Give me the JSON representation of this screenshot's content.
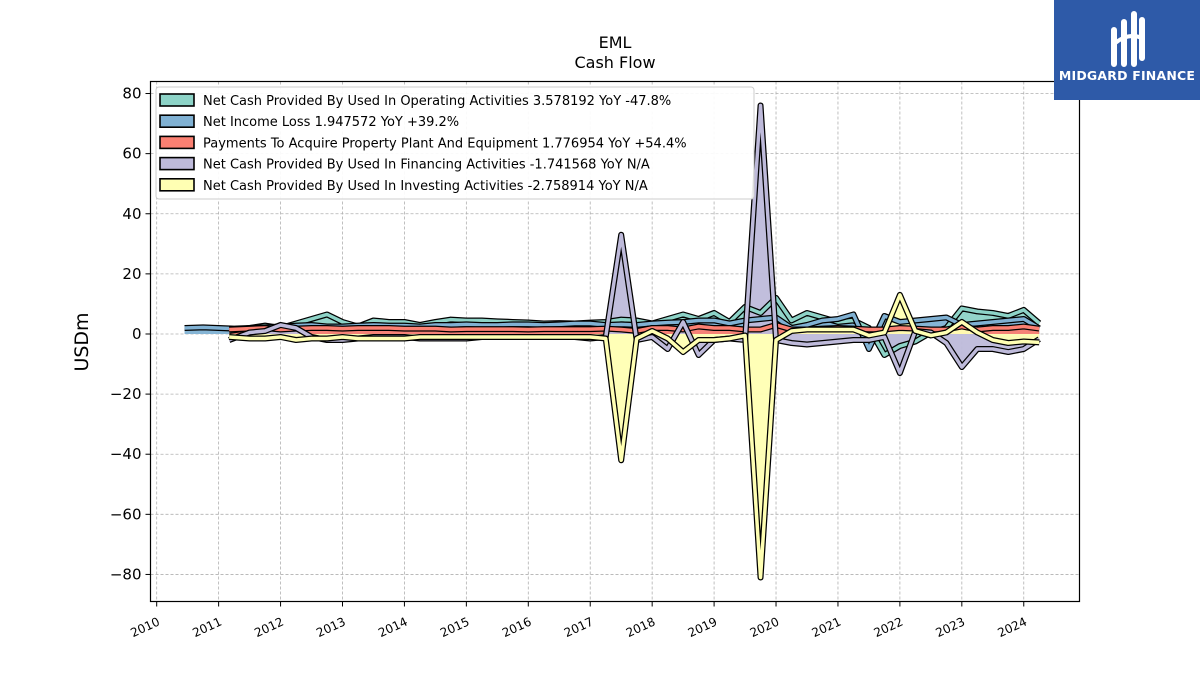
{
  "logo": {
    "text": "MIDGARD FINANCE",
    "icon": "midgard-logo-icon",
    "color": "#2e5aa8"
  },
  "chart_data": {
    "type": "area",
    "title": "EML",
    "subtitle": "Cash Flow",
    "xlabel": "",
    "ylabel": "USDm",
    "xlim": [
      2009.9,
      2024.9
    ],
    "ylim": [
      -89,
      84
    ],
    "x_ticks": [
      "2010",
      "2011",
      "2012",
      "2013",
      "2014",
      "2015",
      "2016",
      "2017",
      "2018",
      "2019",
      "2020",
      "2021",
      "2022",
      "2023",
      "2024"
    ],
    "y_ticks": [
      80,
      60,
      40,
      20,
      0,
      -20,
      -40,
      -60,
      -80
    ],
    "grid": true,
    "legend_position": "top-left",
    "series": [
      {
        "name": "Net Cash Provided By Used In Operating Activities  3.578192 YoY -47.8%",
        "color": "#8dd3c7",
        "x": [
          2011.17,
          2011.5,
          2011.75,
          2012.0,
          2012.25,
          2012.5,
          2012.75,
          2013.0,
          2013.25,
          2013.5,
          2013.75,
          2014.0,
          2014.25,
          2014.5,
          2014.75,
          2015.0,
          2015.25,
          2015.5,
          2015.75,
          2016.0,
          2016.25,
          2016.5,
          2016.75,
          2017.0,
          2017.25,
          2017.5,
          2017.75,
          2018.0,
          2018.25,
          2018.5,
          2018.75,
          2019.0,
          2019.25,
          2019.5,
          2019.75,
          2020.0,
          2020.25,
          2020.5,
          2020.75,
          2021.0,
          2021.25,
          2021.5,
          2021.75,
          2022.0,
          2022.25,
          2022.5,
          2022.75,
          2023.0,
          2023.25,
          2023.5,
          2023.75,
          2024.0,
          2024.25
        ],
        "values": [
          1.0,
          2.0,
          2.8,
          2.0,
          3.5,
          5.0,
          6.5,
          4.0,
          2.5,
          4.5,
          4.0,
          4.0,
          3.0,
          4.0,
          4.8,
          4.5,
          4.5,
          4.2,
          4.0,
          3.8,
          3.5,
          3.6,
          3.5,
          3.8,
          4.0,
          4.8,
          4.5,
          3.5,
          5.0,
          6.5,
          5.0,
          7.0,
          4.0,
          9.0,
          7.0,
          12.0,
          4.5,
          7.0,
          5.5,
          4.0,
          4.5,
          2.0,
          -7.0,
          -4.0,
          -2.5,
          0.5,
          2.0,
          8.5,
          7.5,
          7.0,
          6.0,
          8.0,
          3.6
        ]
      },
      {
        "name": "Net Income Loss  1.947572 YoY +39.2%",
        "color": "#80b1d3",
        "x": [
          2010.45,
          2010.75,
          2011.0,
          2011.25,
          2011.5,
          2011.75,
          2012.0,
          2012.25,
          2012.5,
          2012.75,
          2013.0,
          2013.25,
          2013.5,
          2013.75,
          2014.0,
          2014.25,
          2014.5,
          2014.75,
          2015.0,
          2015.25,
          2015.5,
          2015.75,
          2016.0,
          2016.25,
          2016.5,
          2016.75,
          2017.0,
          2017.25,
          2017.5,
          2017.75,
          2018.0,
          2018.25,
          2018.5,
          2018.75,
          2019.0,
          2019.25,
          2019.5,
          2019.75,
          2020.0,
          2020.25,
          2020.5,
          2020.75,
          2021.0,
          2021.25,
          2021.5,
          2021.75,
          2022.0,
          2022.25,
          2022.5,
          2022.75,
          2023.0,
          2023.25,
          2023.5,
          2023.75,
          2024.0,
          2024.25
        ],
        "values": [
          2.0,
          2.2,
          2.0,
          1.8,
          2.0,
          2.2,
          2.5,
          2.8,
          3.0,
          2.5,
          2.5,
          2.8,
          3.0,
          2.8,
          2.8,
          2.5,
          3.0,
          3.0,
          3.2,
          3.0,
          3.0,
          3.2,
          3.2,
          3.0,
          3.2,
          3.5,
          3.5,
          3.0,
          3.2,
          3.0,
          3.5,
          3.8,
          4.0,
          4.5,
          4.5,
          3.5,
          4.5,
          5.0,
          5.5,
          2.0,
          3.0,
          4.5,
          5.0,
          6.5,
          -5.0,
          6.0,
          4.0,
          4.5,
          5.0,
          5.5,
          3.0,
          3.5,
          4.0,
          4.5,
          5.0,
          1.9
        ]
      },
      {
        "name": "Payments To Acquire Property Plant And Equipment  1.776954 YoY +54.4%",
        "color": "#fb8072",
        "x": [
          2011.17,
          2011.5,
          2011.75,
          2012.0,
          2012.25,
          2012.5,
          2012.75,
          2013.0,
          2013.25,
          2013.5,
          2013.75,
          2014.0,
          2014.25,
          2014.5,
          2014.75,
          2015.0,
          2015.25,
          2015.5,
          2015.75,
          2016.0,
          2016.25,
          2016.5,
          2016.75,
          2017.0,
          2017.25,
          2017.5,
          2017.75,
          2018.0,
          2018.25,
          2018.5,
          2018.75,
          2019.0,
          2019.25,
          2019.5,
          2019.75,
          2020.0,
          2020.25,
          2020.5,
          2020.75,
          2021.0,
          2021.25,
          2021.5,
          2021.75,
          2022.0,
          2022.25,
          2022.5,
          2022.75,
          2023.0,
          2023.25,
          2023.5,
          2023.75,
          2024.0,
          2024.25
        ],
        "values": [
          1.5,
          1.8,
          2.0,
          1.5,
          1.8,
          2.0,
          2.0,
          1.8,
          2.0,
          2.0,
          2.0,
          1.8,
          1.8,
          1.8,
          1.5,
          1.6,
          1.6,
          1.6,
          1.6,
          1.5,
          1.6,
          1.6,
          1.6,
          1.6,
          1.8,
          1.5,
          1.0,
          2.0,
          2.0,
          1.5,
          2.5,
          2.0,
          2.0,
          1.5,
          1.5,
          3.0,
          1.5,
          1.5,
          1.8,
          2.0,
          1.8,
          1.5,
          1.5,
          2.0,
          1.8,
          1.5,
          1.5,
          2.5,
          1.5,
          2.0,
          2.0,
          2.5,
          1.8
        ]
      },
      {
        "name": "Net Cash Provided By Used In Financing Activities  -1.741568 YoY N/A",
        "color": "#bebada",
        "x": [
          2011.17,
          2011.5,
          2011.75,
          2012.0,
          2012.25,
          2012.5,
          2012.75,
          2013.0,
          2013.25,
          2013.5,
          2013.75,
          2014.0,
          2014.25,
          2014.5,
          2014.75,
          2015.0,
          2015.25,
          2015.5,
          2015.75,
          2016.0,
          2016.25,
          2016.5,
          2016.75,
          2017.0,
          2017.25,
          2017.5,
          2017.75,
          2018.0,
          2018.25,
          2018.5,
          2018.75,
          2019.0,
          2019.25,
          2019.5,
          2019.75,
          2020.0,
          2020.25,
          2020.5,
          2020.75,
          2021.0,
          2021.25,
          2021.5,
          2021.75,
          2022.0,
          2022.25,
          2022.5,
          2022.75,
          2023.0,
          2023.25,
          2023.5,
          2023.75,
          2024.0,
          2024.25
        ],
        "values": [
          -2.0,
          0.5,
          1.0,
          3.0,
          2.0,
          -1.0,
          -2.0,
          -2.0,
          -1.5,
          -1.0,
          -1.0,
          -1.0,
          -1.5,
          -1.5,
          -1.5,
          -1.5,
          -1.0,
          -1.0,
          -1.0,
          -1.0,
          -1.0,
          -1.0,
          -1.0,
          -1.5,
          -1.0,
          33.0,
          -2.0,
          -1.0,
          -5.0,
          4.0,
          -7.0,
          -2.0,
          -1.5,
          -2.0,
          76.0,
          -2.0,
          -3.0,
          -3.5,
          -3.0,
          -2.5,
          -2.0,
          -2.0,
          -1.0,
          -13.0,
          1.0,
          0.5,
          -3.0,
          -11.0,
          -5.0,
          -5.0,
          -6.0,
          -5.0,
          -1.7
        ]
      },
      {
        "name": "Net Cash Provided By Used In Investing Activities  -2.758914 YoY N/A",
        "color": "#ffffb3",
        "x": [
          2011.17,
          2011.5,
          2011.75,
          2012.0,
          2012.25,
          2012.5,
          2012.75,
          2013.0,
          2013.25,
          2013.5,
          2013.75,
          2014.0,
          2014.25,
          2014.5,
          2014.75,
          2015.0,
          2015.25,
          2015.5,
          2015.75,
          2016.0,
          2016.25,
          2016.5,
          2016.75,
          2017.0,
          2017.25,
          2017.5,
          2017.75,
          2018.0,
          2018.25,
          2018.5,
          2018.75,
          2019.0,
          2019.25,
          2019.5,
          2019.75,
          2020.0,
          2020.25,
          2020.5,
          2020.75,
          2021.0,
          2021.25,
          2021.5,
          2021.75,
          2022.0,
          2022.25,
          2022.5,
          2022.75,
          2023.0,
          2023.25,
          2023.5,
          2023.75,
          2024.0,
          2024.25
        ],
        "values": [
          -1.0,
          -1.5,
          -1.5,
          -1.0,
          -2.0,
          -1.5,
          -1.5,
          -1.0,
          -1.5,
          -1.5,
          -1.5,
          -1.5,
          -1.0,
          -1.0,
          -1.0,
          -1.0,
          -1.0,
          -1.0,
          -1.0,
          -1.0,
          -1.0,
          -1.0,
          -1.0,
          -1.0,
          -1.5,
          -42.0,
          -1.5,
          1.0,
          -1.5,
          -6.0,
          -2.0,
          -2.0,
          -1.5,
          -0.5,
          -81.0,
          -2.0,
          1.0,
          1.5,
          1.5,
          1.5,
          1.5,
          -0.5,
          0.5,
          13.0,
          1.0,
          -0.5,
          0.5,
          4.0,
          0.5,
          -2.0,
          -3.0,
          -2.5,
          -2.8
        ]
      }
    ]
  }
}
